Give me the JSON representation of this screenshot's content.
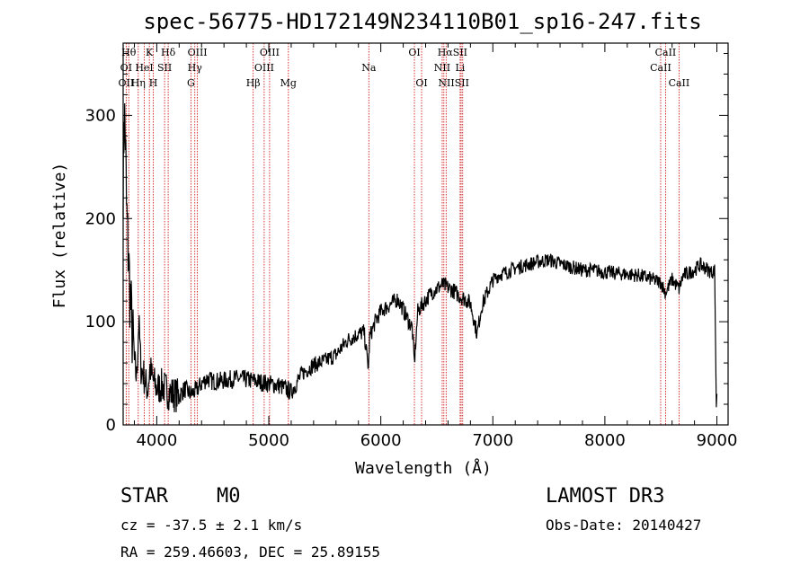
{
  "chart_data": {
    "type": "line",
    "title": "spec-56775-HD172149N234110B01_sp16-247.fits",
    "xlabel": "Wavelength (Å)",
    "ylabel": "Flux (relative)",
    "xlim": [
      3700,
      9100
    ],
    "ylim": [
      0,
      370
    ],
    "x_ticks": [
      4000,
      5000,
      6000,
      7000,
      8000,
      9000
    ],
    "y_ticks": [
      0,
      100,
      200,
      300
    ],
    "grid": false,
    "series": [
      {
        "name": "flux",
        "x": [
          3700,
          3710,
          3720,
          3730,
          3740,
          3760,
          3780,
          3800,
          3820,
          3840,
          3860,
          3880,
          3900,
          3920,
          3940,
          3960,
          3980,
          4000,
          4050,
          4100,
          4150,
          4200,
          4250,
          4300,
          4350,
          4400,
          4450,
          4500,
          4600,
          4700,
          4800,
          4900,
          5000,
          5100,
          5200,
          5300,
          5400,
          5500,
          5600,
          5700,
          5800,
          5850,
          5890,
          5900,
          5950,
          6000,
          6100,
          6150,
          6200,
          6250,
          6280,
          6300,
          6330,
          6380,
          6450,
          6500,
          6550,
          6600,
          6650,
          6700,
          6750,
          6800,
          6860,
          6900,
          6950,
          7000,
          7050,
          7100,
          7200,
          7300,
          7400,
          7500,
          7600,
          7700,
          7800,
          7900,
          8000,
          8100,
          8200,
          8300,
          8400,
          8450,
          8500,
          8542,
          8600,
          8662,
          8700,
          8800,
          8850,
          8900,
          8950,
          8980,
          8995,
          9000
        ],
        "values": [
          240,
          300,
          280,
          210,
          180,
          130,
          90,
          60,
          45,
          100,
          55,
          50,
          40,
          35,
          55,
          45,
          40,
          35,
          38,
          32,
          30,
          28,
          35,
          30,
          33,
          40,
          45,
          42,
          43,
          45,
          44,
          42,
          40,
          38,
          32,
          50,
          58,
          62,
          68,
          82,
          88,
          90,
          55,
          85,
          100,
          110,
          118,
          122,
          112,
          100,
          95,
          60,
          110,
          118,
          128,
          132,
          136,
          133,
          130,
          125,
          122,
          118,
          88,
          115,
          128,
          140,
          145,
          147,
          152,
          155,
          158,
          160,
          156,
          153,
          150,
          150,
          148,
          147,
          146,
          145,
          142,
          140,
          138,
          128,
          141,
          132,
          145,
          150,
          155,
          152,
          148,
          150,
          20,
          30
        ]
      }
    ],
    "emission_lines": [
      {
        "name": "OII",
        "wavelength": 3727
      },
      {
        "name": "Hθ",
        "wavelength": 3750
      },
      {
        "name": "Hη",
        "wavelength": 3835
      },
      {
        "name": "K",
        "wavelength": 3934
      },
      {
        "name": "H",
        "wavelength": 3969
      },
      {
        "name": "HeI",
        "wavelength": 3889
      },
      {
        "name": "SII",
        "wavelength": 4070
      },
      {
        "name": "Hδ",
        "wavelength": 4102
      },
      {
        "name": "G",
        "wavelength": 4305
      },
      {
        "name": "Hγ",
        "wavelength": 4340
      },
      {
        "name": "OIII",
        "wavelength": 4363
      },
      {
        "name": "Hβ",
        "wavelength": 4861
      },
      {
        "name": "OIII",
        "wavelength": 4959
      },
      {
        "name": "OIII",
        "wavelength": 5007
      },
      {
        "name": "Mg",
        "wavelength": 5175
      },
      {
        "name": "Na",
        "wavelength": 5893
      },
      {
        "name": "OI",
        "wavelength": 6300
      },
      {
        "name": "OI",
        "wavelength": 6364
      },
      {
        "name": "NII",
        "wavelength": 6548
      },
      {
        "name": "Hα",
        "wavelength": 6563
      },
      {
        "name": "NII",
        "wavelength": 6583
      },
      {
        "name": "Li",
        "wavelength": 6708
      },
      {
        "name": "SII",
        "wavelength": 6717
      },
      {
        "name": "SII",
        "wavelength": 6731
      },
      {
        "name": "CaII",
        "wavelength": 8498
      },
      {
        "name": "CaII",
        "wavelength": 8542
      },
      {
        "name": "CaII",
        "wavelength": 8662
      }
    ],
    "line_labels": [
      {
        "text": "Hθ",
        "wavelength": 3750,
        "row": 0
      },
      {
        "text": "K",
        "wavelength": 3934,
        "row": 0
      },
      {
        "text": "Hδ",
        "wavelength": 4102,
        "row": 0
      },
      {
        "text": "OIII",
        "wavelength": 4363,
        "row": 0
      },
      {
        "text": "OIII",
        "wavelength": 5007,
        "row": 0
      },
      {
        "text": "OI",
        "wavelength": 6300,
        "row": 0
      },
      {
        "text": "HαSII",
        "wavelength": 6640,
        "row": 0
      },
      {
        "text": "CaII",
        "wavelength": 8542,
        "row": 0
      },
      {
        "text": "OI",
        "wavelength": 3727,
        "row": 1
      },
      {
        "text": "HeI",
        "wavelength": 3889,
        "row": 1
      },
      {
        "text": "SII",
        "wavelength": 4070,
        "row": 1
      },
      {
        "text": "Hγ",
        "wavelength": 4340,
        "row": 1
      },
      {
        "text": "OIII",
        "wavelength": 4959,
        "row": 1
      },
      {
        "text": "Na",
        "wavelength": 5893,
        "row": 1
      },
      {
        "text": "NII",
        "wavelength": 6548,
        "row": 1
      },
      {
        "text": "Li",
        "wavelength": 6708,
        "row": 1
      },
      {
        "text": "CaII",
        "wavelength": 8498,
        "row": 1
      },
      {
        "text": "OII",
        "wavelength": 3727,
        "row": 2
      },
      {
        "text": "Hη",
        "wavelength": 3835,
        "row": 2
      },
      {
        "text": "H",
        "wavelength": 3969,
        "row": 2
      },
      {
        "text": "G",
        "wavelength": 4305,
        "row": 2
      },
      {
        "text": "Hβ",
        "wavelength": 4861,
        "row": 2
      },
      {
        "text": "Mg",
        "wavelength": 5175,
        "row": 2
      },
      {
        "text": "OI",
        "wavelength": 6364,
        "row": 2
      },
      {
        "text": "NIISII",
        "wavelength": 6650,
        "row": 2
      },
      {
        "text": "CaII",
        "wavelength": 8662,
        "row": 2
      }
    ]
  },
  "info": {
    "object_class": "STAR",
    "subclass": "M0",
    "survey": "LAMOST DR3",
    "cz": "cz = -37.5 ± 2.1 km/s",
    "obs_date": "Obs-Date: 20140427",
    "coords": "RA = 259.46603, DEC =  25.89155"
  },
  "colors": {
    "axis": "#000000",
    "spectrum": "#000000",
    "line_marker": "#cc0000",
    "background": "#ffffff"
  }
}
